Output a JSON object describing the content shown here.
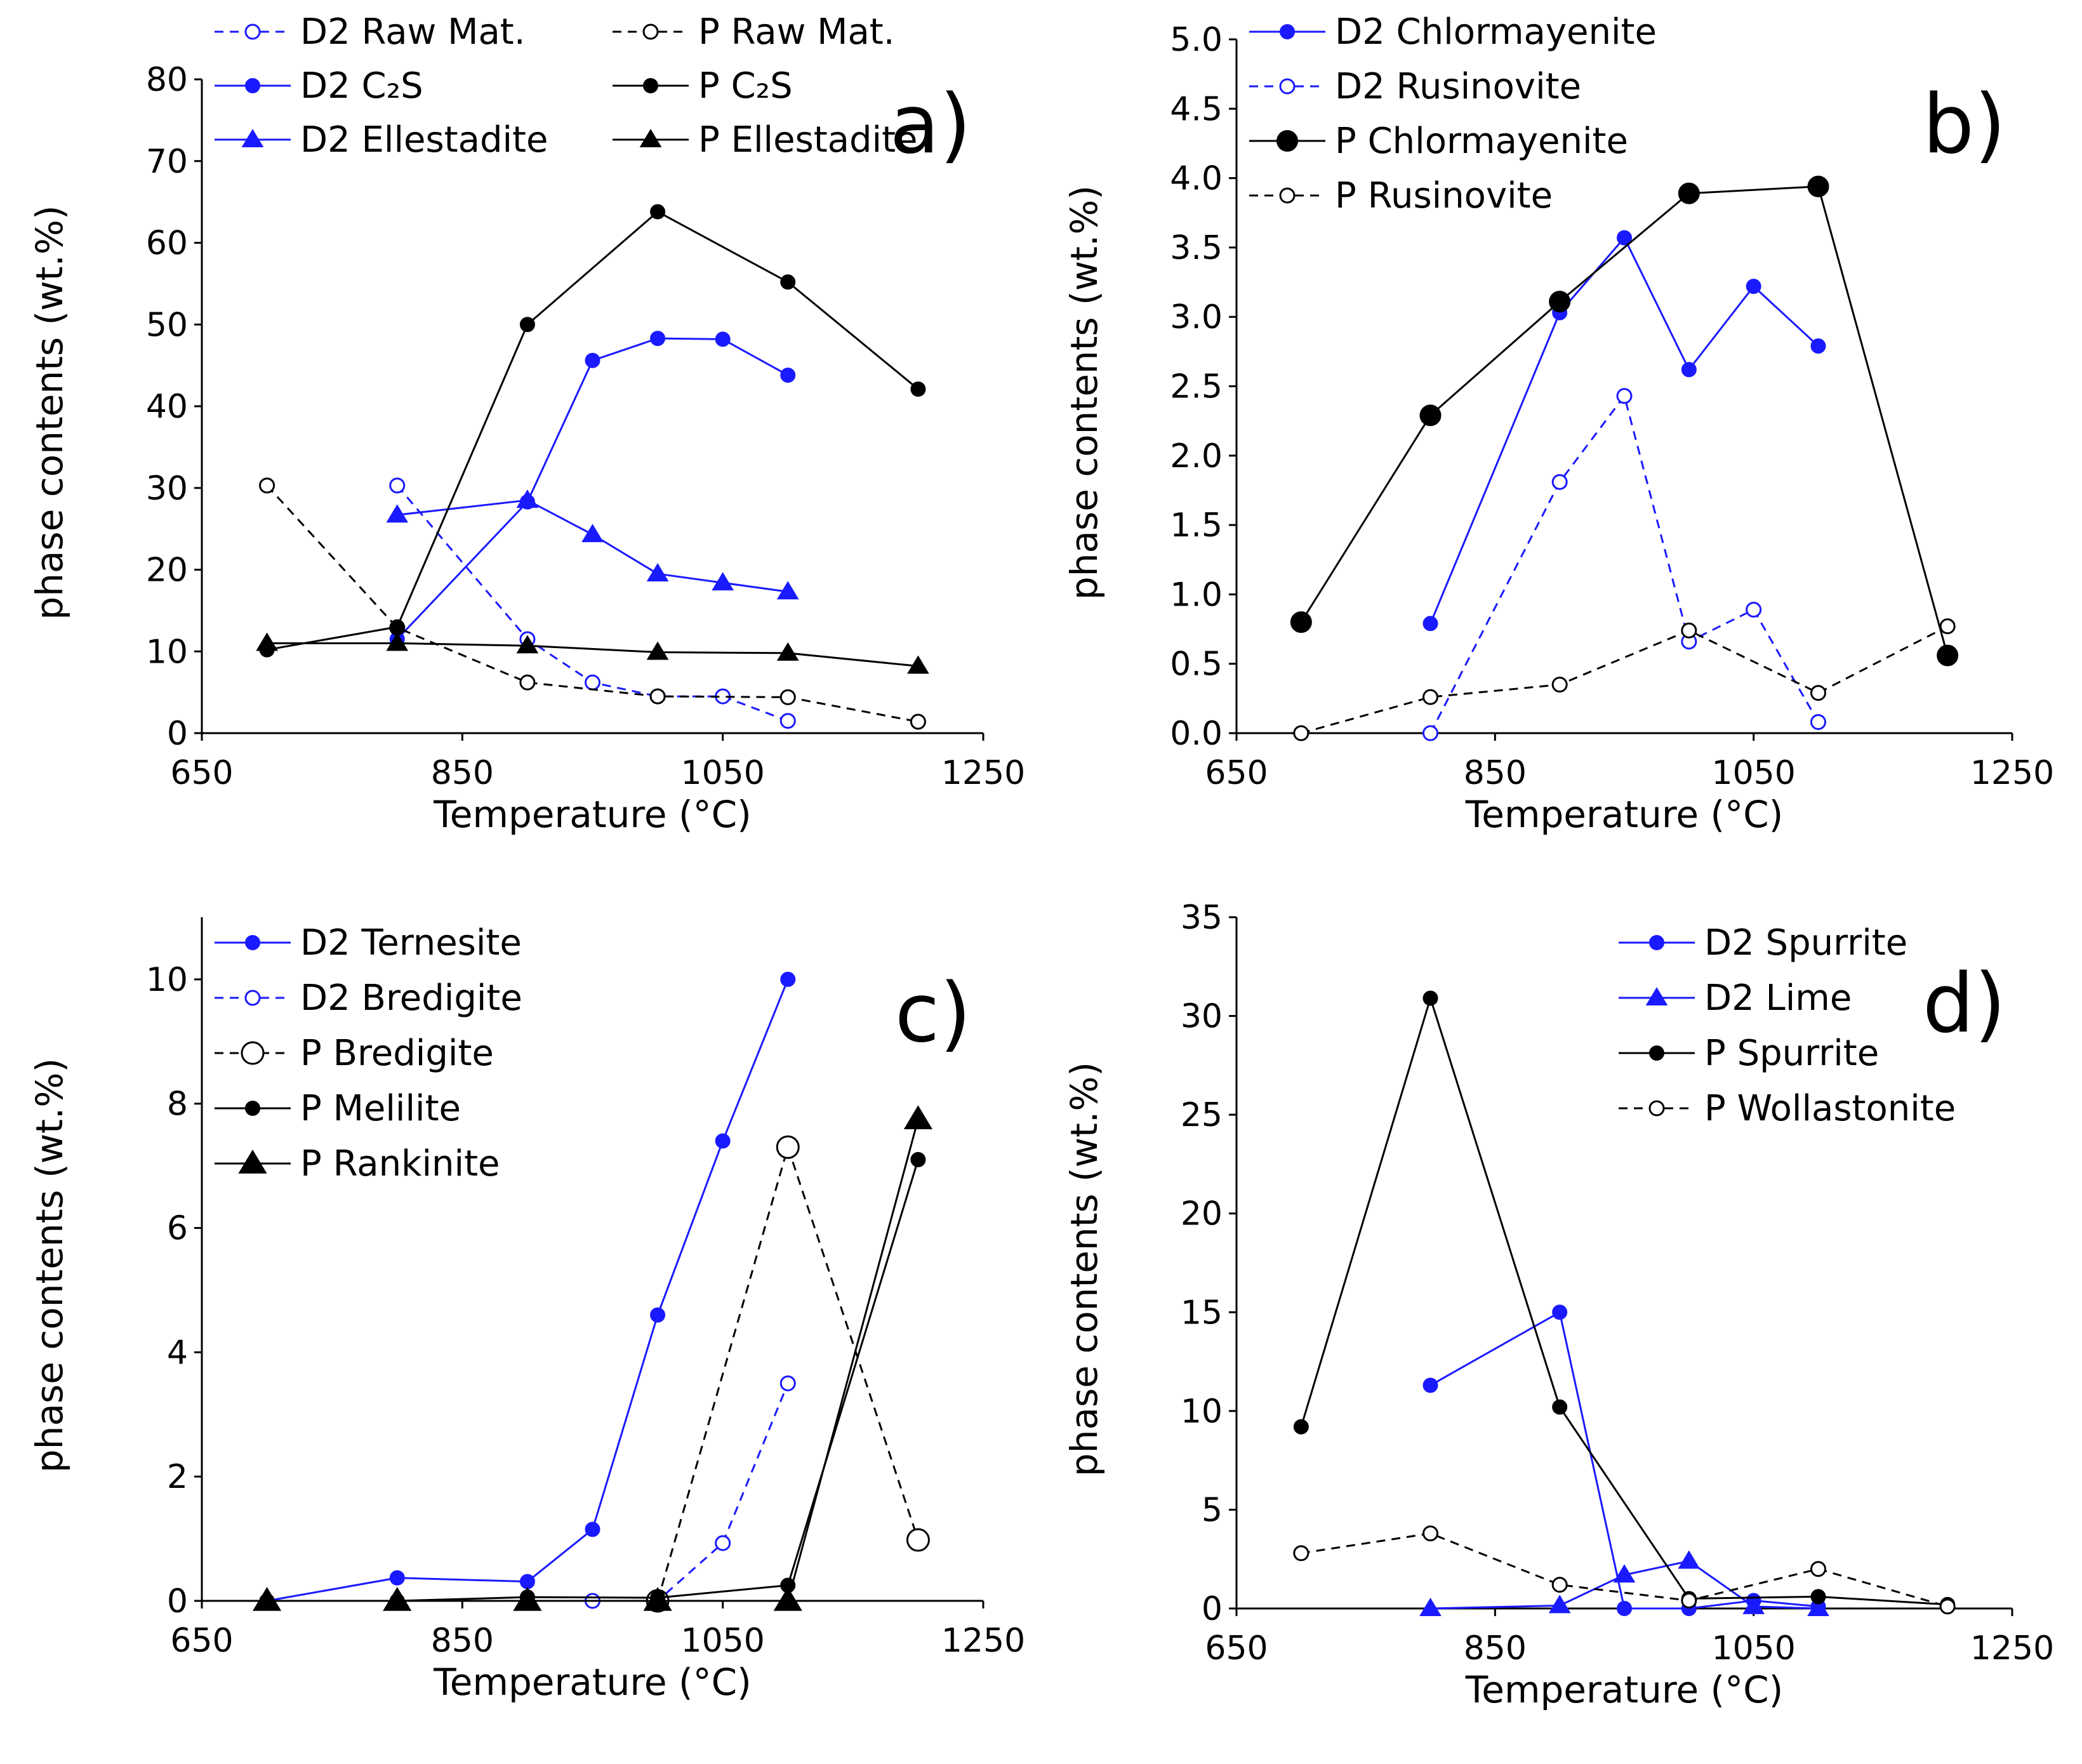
{
  "colors": {
    "blue": "#1a1aff",
    "black": "#000000"
  },
  "chart_data": [
    {
      "id": "a",
      "type": "line",
      "panel_label": "a)",
      "xlabel": "Temperature (°C)",
      "ylabel": "phase contents (wt.%)",
      "xlim": [
        650,
        1250
      ],
      "ylim": [
        0,
        80
      ],
      "xticks": [
        650,
        850,
        1050,
        1250
      ],
      "yticks": [
        0,
        10,
        20,
        30,
        40,
        50,
        60,
        70,
        80
      ],
      "legend_placement": "top",
      "series": [
        {
          "name": "D2 Raw Mat.",
          "color": "blue",
          "dash": true,
          "marker": "circle-open",
          "x": [
            800,
            900,
            950,
            1000,
            1050,
            1100
          ],
          "y": [
            30.3,
            11.5,
            6.2,
            4.5,
            4.5,
            1.5
          ]
        },
        {
          "name": "D2 C₂S",
          "color": "blue",
          "dash": false,
          "marker": "circle",
          "x": [
            800,
            900,
            950,
            1000,
            1050,
            1100
          ],
          "y": [
            11.5,
            28.3,
            45.6,
            48.3,
            48.2,
            43.8
          ]
        },
        {
          "name": "D2 Ellestadite",
          "color": "blue",
          "dash": false,
          "marker": "triangle",
          "x": [
            800,
            900,
            950,
            1000,
            1050,
            1100
          ],
          "y": [
            26.7,
            28.5,
            24.3,
            19.5,
            18.4,
            17.3
          ]
        },
        {
          "name": "P Raw Mat.",
          "color": "black",
          "dash": true,
          "marker": "circle-open",
          "x": [
            700,
            800,
            900,
            1000,
            1100,
            1200
          ],
          "y": [
            30.3,
            12.9,
            6.2,
            4.5,
            4.4,
            1.4
          ]
        },
        {
          "name": "P C₂S",
          "color": "black",
          "dash": false,
          "marker": "circle",
          "x": [
            700,
            800,
            900,
            1000,
            1100,
            1200
          ],
          "y": [
            10.2,
            13.0,
            50.0,
            63.8,
            55.2,
            42.1
          ]
        },
        {
          "name": "P Ellestadite",
          "color": "black",
          "dash": false,
          "marker": "triangle",
          "x": [
            700,
            800,
            900,
            1000,
            1100,
            1200
          ],
          "y": [
            11.0,
            11.0,
            10.7,
            9.9,
            9.8,
            8.2
          ]
        }
      ]
    },
    {
      "id": "b",
      "type": "line",
      "panel_label": "b)",
      "xlabel": "Temperature (°C)",
      "ylabel": "phase contents (wt.%)",
      "xlim": [
        650,
        1250
      ],
      "ylim": [
        0,
        5
      ],
      "xticks": [
        650,
        850,
        1050,
        1250
      ],
      "yticks": [
        "0.0",
        "0.5",
        "1.0",
        "1.5",
        "2.0",
        "2.5",
        "3.0",
        "3.5",
        "4.0",
        "4.5",
        "5.0"
      ],
      "legend_placement": "top-left",
      "series": [
        {
          "name": "D2 Chlormayenite",
          "color": "blue",
          "dash": false,
          "marker": "circle",
          "x": [
            800,
            900,
            950,
            1000,
            1050,
            1100
          ],
          "y": [
            0.79,
            3.03,
            3.57,
            2.62,
            3.22,
            2.79
          ]
        },
        {
          "name": "D2 Rusinovite",
          "color": "blue",
          "dash": true,
          "marker": "circle-open",
          "x": [
            800,
            900,
            950,
            1000,
            1050,
            1100
          ],
          "y": [
            0.0,
            1.81,
            2.43,
            0.66,
            0.89,
            0.08
          ]
        },
        {
          "name": "P Chlormayenite",
          "color": "black",
          "dash": false,
          "marker": "circle-big",
          "x": [
            700,
            800,
            900,
            1000,
            1100,
            1200
          ],
          "y": [
            0.8,
            2.29,
            3.11,
            3.89,
            3.94,
            0.56
          ]
        },
        {
          "name": "P Rusinovite",
          "color": "black",
          "dash": true,
          "marker": "circle-open",
          "x": [
            700,
            800,
            900,
            1000,
            1100,
            1200
          ],
          "y": [
            0.0,
            0.26,
            0.35,
            0.74,
            0.29,
            0.77
          ]
        }
      ]
    },
    {
      "id": "c",
      "type": "line",
      "panel_label": "c)",
      "xlabel": "Temperature (°C)",
      "ylabel": "phase contents (wt.%)",
      "xlim": [
        650,
        1250
      ],
      "ylim": [
        0,
        11
      ],
      "xticks": [
        650,
        850,
        1050,
        1250
      ],
      "yticks": [
        0,
        2,
        4,
        6,
        8,
        10
      ],
      "legend_placement": "top-left",
      "series": [
        {
          "name": "D2 Ternesite",
          "color": "blue",
          "dash": false,
          "marker": "circle",
          "x": [
            700,
            800,
            900,
            950,
            1000,
            1050,
            1100
          ],
          "y": [
            0.0,
            0.37,
            0.31,
            1.15,
            4.6,
            7.4,
            10.0
          ]
        },
        {
          "name": "D2 Bredigite",
          "color": "blue",
          "dash": true,
          "marker": "circle-open",
          "x": [
            950,
            1000,
            1050,
            1100
          ],
          "y": [
            0.0,
            0.0,
            0.93,
            3.5
          ]
        },
        {
          "name": "P Bredigite",
          "color": "black",
          "dash": true,
          "marker": "circle-open-big",
          "x": [
            1000,
            1100,
            1200
          ],
          "y": [
            0.0,
            7.3,
            0.98
          ]
        },
        {
          "name": "P Melilite",
          "color": "black",
          "dash": false,
          "marker": "circle",
          "x": [
            700,
            800,
            900,
            1000,
            1100,
            1200
          ],
          "y": [
            0.0,
            0.0,
            0.06,
            0.05,
            0.25,
            7.1
          ]
        },
        {
          "name": "P Rankinite",
          "color": "black",
          "dash": false,
          "marker": "triangle-big",
          "x": [
            700,
            800,
            900,
            1000,
            1100,
            1200
          ],
          "y": [
            0.0,
            0.0,
            0.0,
            0.0,
            0.0,
            7.75
          ]
        }
      ]
    },
    {
      "id": "d",
      "type": "line",
      "panel_label": "d)",
      "xlabel": "Temperature (°C)",
      "ylabel": "phase contents (wt.%)",
      "xlim": [
        650,
        1250
      ],
      "ylim": [
        0,
        35
      ],
      "xticks": [
        650,
        850,
        1050,
        1250
      ],
      "yticks": [
        0,
        5,
        10,
        15,
        20,
        25,
        30,
        35
      ],
      "legend_placement": "top-right",
      "series": [
        {
          "name": "D2 Spurrite",
          "color": "blue",
          "dash": false,
          "marker": "circle",
          "x": [
            800,
            900,
            950,
            1000,
            1050,
            1100
          ],
          "y": [
            11.3,
            15.0,
            0.0,
            0.0,
            0.4,
            0.1
          ]
        },
        {
          "name": "D2 Lime",
          "color": "blue",
          "dash": false,
          "marker": "triangle",
          "x": [
            800,
            900,
            950,
            1000,
            1050,
            1100
          ],
          "y": [
            0.0,
            0.15,
            1.7,
            2.4,
            0.1,
            0.0
          ]
        },
        {
          "name": "P Spurrite",
          "color": "black",
          "dash": false,
          "marker": "circle",
          "x": [
            700,
            800,
            900,
            1000,
            1100,
            1200
          ],
          "y": [
            9.2,
            30.9,
            10.2,
            0.5,
            0.6,
            0.2
          ]
        },
        {
          "name": "P Wollastonite",
          "color": "black",
          "dash": true,
          "marker": "circle-open",
          "x": [
            700,
            800,
            900,
            1000,
            1100,
            1200
          ],
          "y": [
            2.8,
            3.8,
            1.2,
            0.4,
            2.0,
            0.1
          ]
        }
      ]
    }
  ]
}
